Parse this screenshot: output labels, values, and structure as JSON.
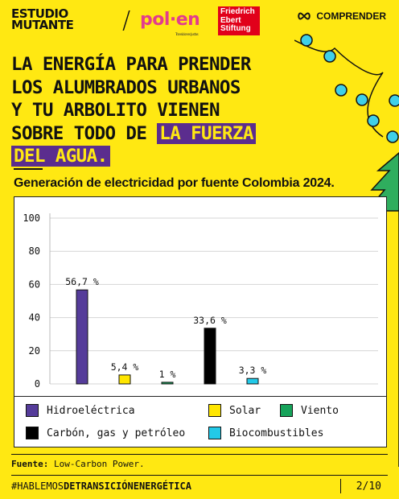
{
  "header": {
    "brand_line1": "ESTUDIO",
    "brand_line2": "MUTANTE",
    "partner_polen": "pol·en",
    "partner_polen_sub": "Transiciones Justas",
    "partner_fes_line1": "Friedrich",
    "partner_fes_line2": "Ebert",
    "partner_fes_line3": "Stiftung",
    "section_label": "COMPRENDER"
  },
  "headline": {
    "line1": "LA ENERGÍA PARA PRENDER",
    "line2": "LOS ALUMBRADOS URBANOS",
    "line3": "Y TU ARBOLITO VIENEN",
    "line4_plain": "SOBRE TODO DE ",
    "line4_highlight": "LA FUERZA",
    "line5_highlight": "DEL AGUA."
  },
  "chart_title": "Generación de electricidad por fuente Colombia 2024.",
  "chart_data": {
    "type": "bar",
    "categories": [
      "Hidroeléctrica",
      "Solar",
      "Viento",
      "Carbón, gas y petróleo",
      "Biocombustibles"
    ],
    "values": [
      56.7,
      5.4,
      1,
      33.6,
      3.3
    ],
    "value_labels": [
      "56,7 %",
      "5,4 %",
      "1 %",
      "33,6 %",
      "3,3 %"
    ],
    "colors": [
      "#553C9A",
      "#FFE600",
      "#16A35A",
      "#000000",
      "#22C9E8"
    ],
    "ylim": [
      0,
      100
    ],
    "yticks": [
      0,
      20,
      40,
      60,
      80,
      100
    ],
    "grid": true,
    "legend_position": "bottom",
    "title": "Generación de electricidad por fuente Colombia 2024."
  },
  "legend": [
    {
      "label": "Hidroeléctrica",
      "color": "#553C9A"
    },
    {
      "label": "Solar",
      "color": "#FFE600"
    },
    {
      "label": "Viento",
      "color": "#16A35A"
    },
    {
      "label": "Carbón, gas y petróleo",
      "color": "#000000"
    },
    {
      "label": "Biocombustibles",
      "color": "#22C9E8"
    }
  ],
  "source": {
    "label": "Fuente:",
    "text": "Low-Carbon Power."
  },
  "footer": {
    "hashtag_plain": "#HABLEMOS",
    "hashtag_bold": "DETRANSICIÓNENERGÉTICA",
    "page": "2/10"
  },
  "colors": {
    "background": "#FFE812",
    "highlight": "#5B2D8E",
    "tree": "#2FAE5E",
    "lights": "#3FD0E8"
  }
}
